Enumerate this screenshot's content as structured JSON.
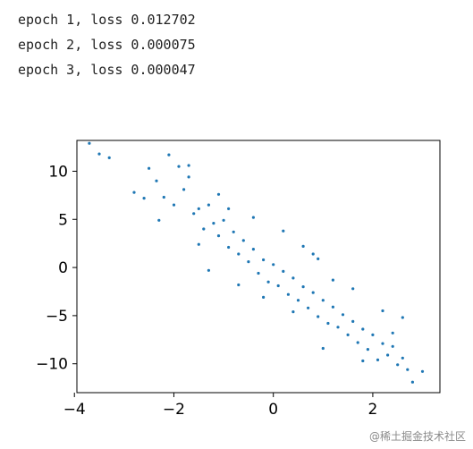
{
  "console": {
    "lines": [
      "epoch 1, loss 0.012702",
      "epoch 2, loss 0.000075",
      "epoch 3, loss 0.000047"
    ]
  },
  "chart_data": {
    "type": "scatter",
    "title": "",
    "xlabel": "",
    "ylabel": "",
    "xlim": [
      -3.95,
      3.35
    ],
    "ylim": [
      -13.0,
      13.2
    ],
    "xticks": [
      -4,
      -2,
      0,
      2
    ],
    "xtick_labels": [
      "−4",
      "−2",
      "0",
      "2"
    ],
    "yticks": [
      -10,
      -5,
      0,
      5,
      10
    ],
    "ytick_labels": [
      "−10",
      "−5",
      "0",
      "5",
      "10"
    ],
    "grid": false,
    "marker_color": "#1f77b4",
    "points": [
      [
        -3.7,
        12.9
      ],
      [
        -3.5,
        11.8
      ],
      [
        -3.3,
        11.4
      ],
      [
        -2.8,
        7.8
      ],
      [
        -2.5,
        10.3
      ],
      [
        -2.35,
        9.0
      ],
      [
        -2.2,
        7.3
      ],
      [
        -2.1,
        11.7
      ],
      [
        -2.0,
        6.5
      ],
      [
        -1.9,
        10.5
      ],
      [
        -1.8,
        8.1
      ],
      [
        -1.7,
        9.4
      ],
      [
        -1.6,
        5.6
      ],
      [
        -1.5,
        6.1
      ],
      [
        -1.4,
        4.0
      ],
      [
        -1.3,
        6.5
      ],
      [
        -1.2,
        4.6
      ],
      [
        -1.1,
        3.3
      ],
      [
        -1.0,
        4.9
      ],
      [
        -0.9,
        2.1
      ],
      [
        -0.8,
        3.7
      ],
      [
        -0.7,
        1.4
      ],
      [
        -0.6,
        2.8
      ],
      [
        -0.5,
        0.6
      ],
      [
        -0.4,
        1.9
      ],
      [
        -0.3,
        -0.6
      ],
      [
        -0.2,
        0.8
      ],
      [
        -0.1,
        -1.5
      ],
      [
        0.0,
        0.3
      ],
      [
        0.1,
        -1.9
      ],
      [
        0.2,
        -0.4
      ],
      [
        0.3,
        -2.8
      ],
      [
        0.4,
        -1.1
      ],
      [
        0.5,
        -3.4
      ],
      [
        0.6,
        -2.0
      ],
      [
        0.7,
        -4.2
      ],
      [
        0.8,
        -2.6
      ],
      [
        0.9,
        -5.1
      ],
      [
        1.0,
        -3.4
      ],
      [
        1.1,
        -5.8
      ],
      [
        1.2,
        -4.1
      ],
      [
        1.3,
        -6.2
      ],
      [
        1.4,
        -4.9
      ],
      [
        1.5,
        -7.0
      ],
      [
        1.6,
        -5.6
      ],
      [
        1.7,
        -7.8
      ],
      [
        1.8,
        -6.4
      ],
      [
        1.9,
        -8.5
      ],
      [
        2.0,
        -7.0
      ],
      [
        2.1,
        -9.6
      ],
      [
        2.2,
        -7.9
      ],
      [
        2.3,
        -9.1
      ],
      [
        2.4,
        -8.2
      ],
      [
        2.5,
        -10.1
      ],
      [
        2.6,
        -9.4
      ],
      [
        2.7,
        -10.6
      ],
      [
        2.8,
        -11.9
      ],
      [
        3.0,
        -10.8
      ],
      [
        2.6,
        -5.2
      ],
      [
        2.4,
        -6.8
      ],
      [
        1.6,
        -2.2
      ],
      [
        1.2,
        -1.3
      ],
      [
        -1.7,
        10.6
      ],
      [
        -2.3,
        4.9
      ],
      [
        -1.5,
        2.4
      ],
      [
        -0.9,
        6.1
      ],
      [
        -0.4,
        5.2
      ],
      [
        0.2,
        3.8
      ],
      [
        0.6,
        2.2
      ],
      [
        0.9,
        0.9
      ],
      [
        -0.7,
        -1.8
      ],
      [
        -0.2,
        -3.1
      ],
      [
        0.4,
        -4.6
      ],
      [
        0.8,
        1.4
      ],
      [
        -1.1,
        7.6
      ],
      [
        -2.6,
        7.2
      ],
      [
        1.0,
        -8.4
      ],
      [
        1.8,
        -9.7
      ],
      [
        -1.3,
        -0.3
      ],
      [
        2.2,
        -4.5
      ]
    ]
  },
  "watermark": {
    "text": "@稀土掘金技术社区"
  }
}
